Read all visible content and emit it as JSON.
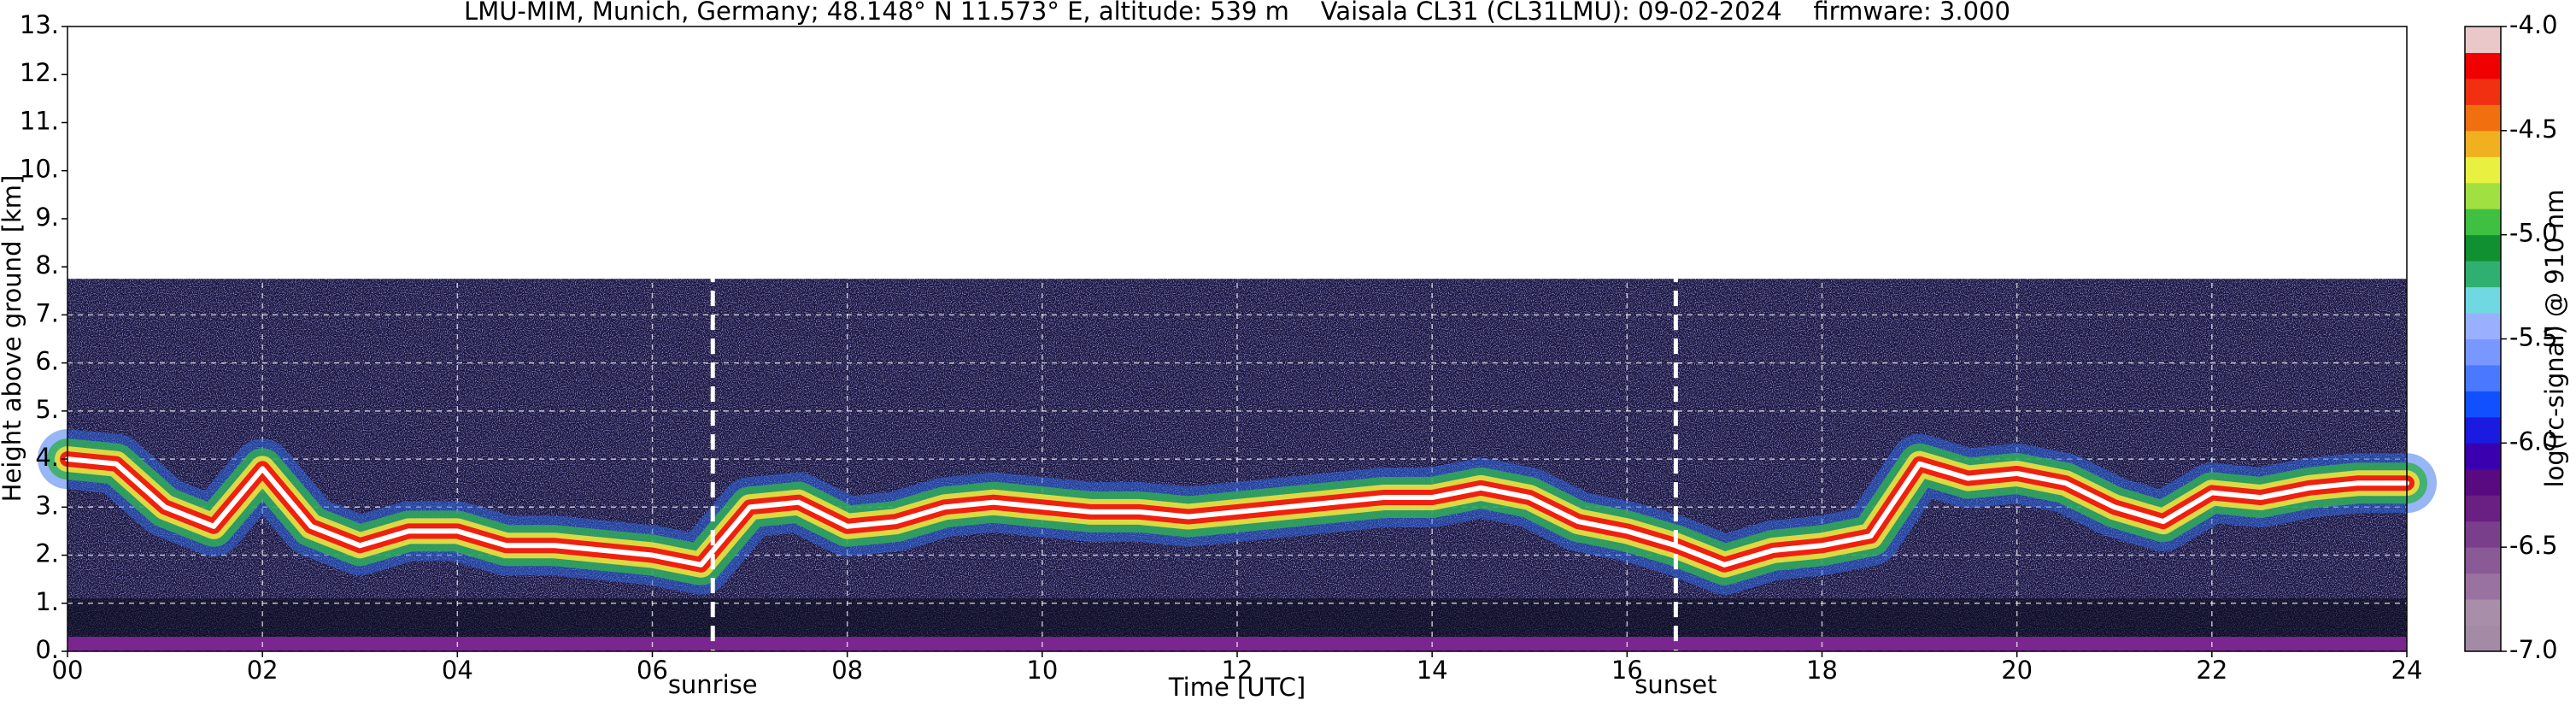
{
  "chart_data": {
    "type": "ceilometer",
    "title": "LMU-MIM, Munich, Germany; 48.148° N 11.573° E, altitude: 539 m    Vaisala CL31 (CL31LMU): 09-02-2024    firmware: 3.000",
    "xlabel": "Time [UTC]",
    "ylabel": "Height above ground [km]",
    "xlim": [
      0,
      24
    ],
    "xticks": [
      {
        "value": 0,
        "label": "00"
      },
      {
        "value": 2,
        "label": "02"
      },
      {
        "value": 4,
        "label": "04"
      },
      {
        "value": 6,
        "label": "06"
      },
      {
        "value": 8,
        "label": "08"
      },
      10,
      12,
      14,
      16,
      18,
      20,
      22,
      24
    ],
    "ylim": [
      0,
      13
    ],
    "yticks": [
      {
        "value": 0,
        "label": "0."
      },
      {
        "value": 1,
        "label": "1."
      },
      {
        "value": 2,
        "label": "2."
      },
      {
        "value": 3,
        "label": "3."
      },
      {
        "value": 4,
        "label": "4."
      },
      {
        "value": 5,
        "label": "5."
      },
      {
        "value": 6,
        "label": "6."
      },
      {
        "value": 7,
        "label": "7."
      },
      {
        "value": 8,
        "label": "8."
      },
      {
        "value": 9,
        "label": "9."
      },
      {
        "value": 10,
        "label": "10."
      },
      {
        "value": 11,
        "label": "11."
      },
      {
        "value": 12,
        "label": "12."
      },
      {
        "value": 13,
        "label": "13."
      }
    ],
    "grid": true,
    "x": [
      0,
      0.5,
      1,
      1.5,
      2,
      2.5,
      3,
      3.5,
      4,
      4.5,
      5,
      5.5,
      6,
      6.5,
      7,
      7.5,
      8,
      8.5,
      9,
      9.5,
      10,
      10.5,
      11,
      11.5,
      12,
      12.5,
      13,
      13.5,
      14,
      14.5,
      15,
      15.5,
      16,
      16.5,
      17,
      17.5,
      18,
      18.5,
      19,
      19.5,
      20,
      20.5,
      21,
      21.5,
      22,
      22.5,
      23,
      23.5,
      24
    ],
    "values": [
      4.0,
      3.9,
      3.0,
      2.6,
      3.8,
      2.6,
      2.2,
      2.5,
      2.5,
      2.2,
      2.2,
      2.1,
      2.0,
      1.8,
      3.0,
      3.1,
      2.6,
      2.7,
      3.0,
      3.1,
      3.0,
      2.9,
      2.9,
      2.8,
      2.9,
      3.0,
      3.1,
      3.2,
      3.2,
      3.4,
      3.2,
      2.7,
      2.5,
      2.2,
      1.8,
      2.1,
      2.2,
      2.4,
      3.9,
      3.6,
      3.7,
      3.5,
      3.0,
      2.7,
      3.3,
      3.2,
      3.4,
      3.5,
      3.5
    ],
    "annotations": [
      {
        "x": 6.62,
        "label": "sunrise"
      },
      {
        "x": 16.5,
        "label": "sunset"
      }
    ],
    "colorbar": {
      "label": "log(rc-signal) @ 910 nm",
      "lim": [
        -7,
        -4
      ],
      "ticks": [
        {
          "value": -4,
          "label": "-4.0"
        },
        -4.5,
        {
          "value": -5,
          "label": "-5.0"
        },
        -5.5,
        {
          "value": -6,
          "label": "-6.0"
        },
        -6.5,
        {
          "value": -7,
          "label": "-7.0"
        }
      ],
      "colors": [
        "#a38aa5",
        "#a98ea9",
        "#9a72a0",
        "#8a5a96",
        "#7a3f8a",
        "#6a1f82",
        "#5a0a80",
        "#3a00b0",
        "#1a1ae0",
        "#1050ff",
        "#4a78ff",
        "#7898ff",
        "#98b0ff",
        "#70d8e0",
        "#30b070",
        "#109030",
        "#40c040",
        "#a0e040",
        "#e8f040",
        "#f0b020",
        "#f07010",
        "#f03010",
        "#f00000",
        "#e8c8c8"
      ]
    }
  }
}
